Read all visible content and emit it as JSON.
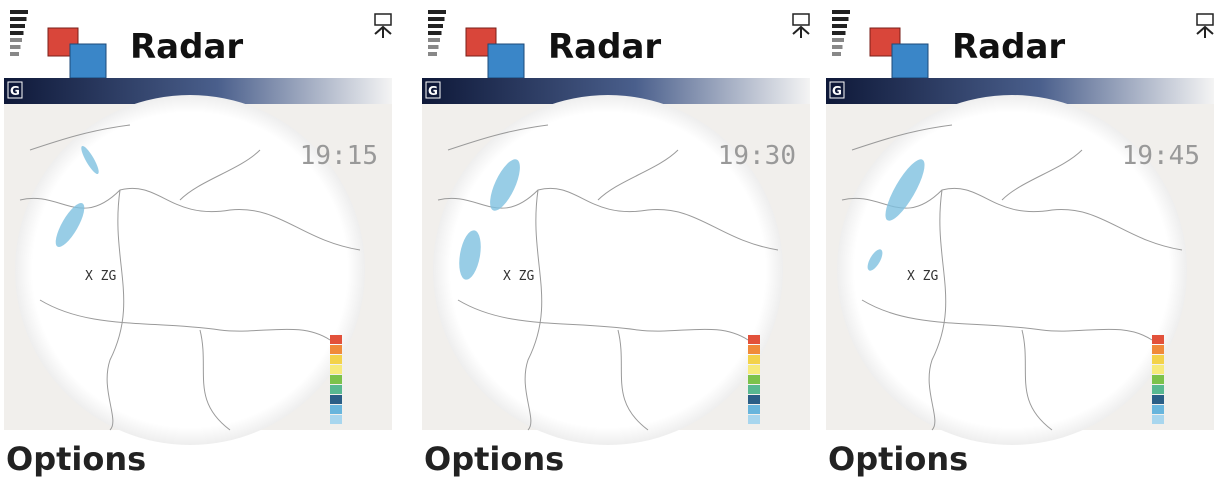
{
  "screens": [
    {
      "title": "Radar",
      "network": "G",
      "time": "19:15",
      "site_label": "X ZG",
      "softkey": "Options"
    },
    {
      "title": "Radar",
      "network": "G",
      "time": "19:30",
      "site_label": "X ZG",
      "softkey": "Options"
    },
    {
      "title": "Radar",
      "network": "G",
      "time": "19:45",
      "site_label": "X ZG",
      "softkey": "Options"
    }
  ]
}
